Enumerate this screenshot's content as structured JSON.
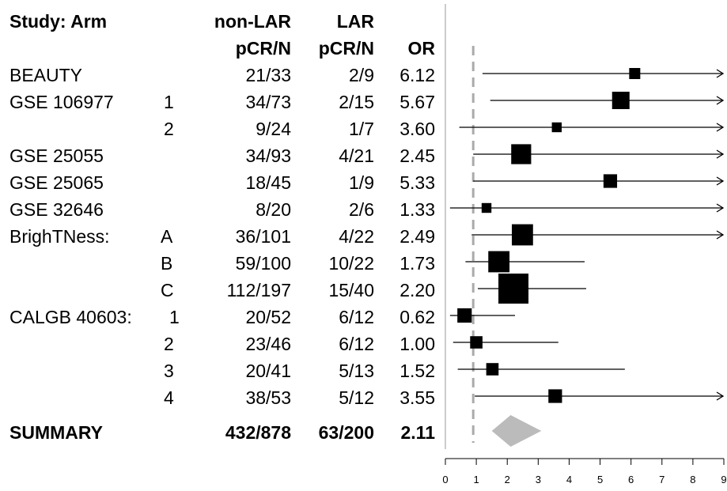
{
  "headers": {
    "study_arm": "Study: Arm",
    "nonlar_line1": "non-LAR",
    "nonlar_line2": "pCR/N",
    "lar_line1": "LAR",
    "lar_line2": "pCR/N",
    "or": "OR"
  },
  "rows": [
    {
      "study": "BEAUTY",
      "arm": "",
      "nonlar": "21/33",
      "lar": "2/9",
      "or": "6.12"
    },
    {
      "study": "GSE 106977",
      "arm": "1",
      "nonlar": "34/73",
      "lar": "2/15",
      "or": "5.67"
    },
    {
      "study": "",
      "arm": "2",
      "nonlar": "9/24",
      "lar": "1/7",
      "or": "3.60"
    },
    {
      "study": "GSE 25055",
      "arm": "",
      "nonlar": "34/93",
      "lar": "4/21",
      "or": "2.45"
    },
    {
      "study": "GSE 25065",
      "arm": "",
      "nonlar": "18/45",
      "lar": "1/9",
      "or": "5.33"
    },
    {
      "study": "GSE 32646",
      "arm": "",
      "nonlar": "8/20",
      "lar": "2/6",
      "or": "1.33"
    },
    {
      "study": "BrighTNess:",
      "arm": "A",
      "nonlar": "36/101",
      "lar": "4/22",
      "or": "2.49"
    },
    {
      "study": "",
      "arm": "B",
      "nonlar": "59/100",
      "lar": "10/22",
      "or": "1.73"
    },
    {
      "study": "",
      "arm": "C",
      "nonlar": "112/197",
      "lar": "15/40",
      "or": "2.20"
    },
    {
      "study": "CALGB 40603:",
      "arm": "1",
      "nonlar": "20/52",
      "lar": "6/12",
      "or": "0.62"
    },
    {
      "study": "",
      "arm": "2",
      "nonlar": "23/46",
      "lar": "6/12",
      "or": "1.00"
    },
    {
      "study": "",
      "arm": "3",
      "nonlar": "20/41",
      "lar": "5/13",
      "or": "1.52"
    },
    {
      "study": "",
      "arm": "4",
      "nonlar": "38/53",
      "lar": "5/12",
      "or": "3.55"
    }
  ],
  "summary": {
    "study": "SUMMARY",
    "nonlar": "432/878",
    "lar": "63/200",
    "or": "2.11"
  },
  "chart_data": {
    "type": "forest",
    "xlim": [
      0,
      9
    ],
    "xticks": [
      "0",
      "1",
      "2",
      "3",
      "4",
      "5",
      "6",
      "7",
      "8",
      "9"
    ],
    "reference_line": 0.9,
    "point_color": "#000000",
    "summary_color": "#bbbbbb",
    "reference_color": "#aaaaaa",
    "series": [
      {
        "label": "BEAUTY",
        "or": 6.12,
        "lower": 1.2,
        "upper": 9,
        "arrow": true,
        "weight": 0.25
      },
      {
        "label": "GSE 106977 1",
        "or": 5.67,
        "lower": 1.45,
        "upper": 9,
        "arrow": true,
        "weight": 0.5
      },
      {
        "label": "GSE 106977 2",
        "or": 3.6,
        "lower": 0.45,
        "upper": 9,
        "arrow": true,
        "weight": 0.2
      },
      {
        "label": "GSE 25055",
        "or": 2.45,
        "lower": 0.9,
        "upper": 9,
        "arrow": true,
        "weight": 0.6
      },
      {
        "label": "GSE 25065",
        "or": 5.33,
        "lower": 0.9,
        "upper": 9,
        "arrow": true,
        "weight": 0.35
      },
      {
        "label": "GSE 32646",
        "or": 1.33,
        "lower": 0.15,
        "upper": 9,
        "arrow": true,
        "weight": 0.2
      },
      {
        "label": "BrighTNess: A",
        "or": 2.49,
        "lower": 0.85,
        "upper": 9,
        "arrow": true,
        "weight": 0.65
      },
      {
        "label": "BrighTNess: B",
        "or": 1.73,
        "lower": 0.65,
        "upper": 4.5,
        "arrow": false,
        "weight": 0.65
      },
      {
        "label": "BrighTNess: C",
        "or": 2.2,
        "lower": 1.05,
        "upper": 4.55,
        "arrow": false,
        "weight": 1.0
      },
      {
        "label": "CALGB 40603: 1",
        "or": 0.62,
        "lower": 0.15,
        "upper": 2.25,
        "arrow": false,
        "weight": 0.38
      },
      {
        "label": "CALGB 40603: 2",
        "or": 1.0,
        "lower": 0.25,
        "upper": 3.65,
        "arrow": false,
        "weight": 0.3
      },
      {
        "label": "CALGB 40603: 3",
        "or": 1.52,
        "lower": 0.4,
        "upper": 5.8,
        "arrow": false,
        "weight": 0.3
      },
      {
        "label": "CALGB 40603: 4",
        "or": 3.55,
        "lower": 0.95,
        "upper": 9,
        "arrow": true,
        "weight": 0.35
      }
    ],
    "summary": {
      "or": 2.11,
      "lower": 1.5,
      "upper": 3.1
    }
  }
}
